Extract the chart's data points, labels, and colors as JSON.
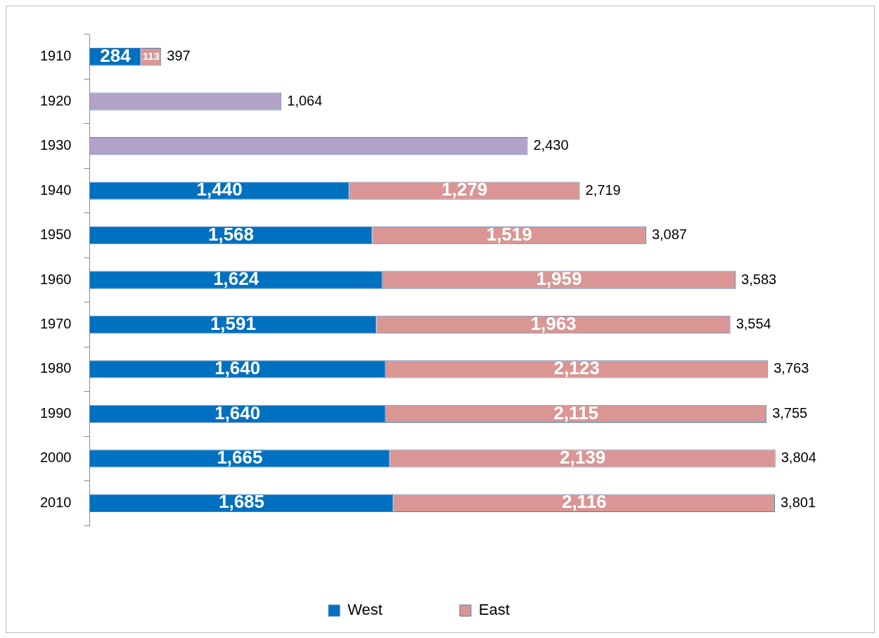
{
  "chart_data": {
    "type": "bar",
    "orientation": "horizontal",
    "stacked": true,
    "legend": "bottom",
    "categories": [
      "1910",
      "1920",
      "1930",
      "1940",
      "1950",
      "1960",
      "1970",
      "1980",
      "1990",
      "2000",
      "2010"
    ],
    "series": [
      {
        "name": "West",
        "color": "#0070c0",
        "values": [
          284,
          null,
          null,
          1440,
          1568,
          1624,
          1591,
          1640,
          1640,
          1665,
          1685
        ],
        "value_labels": [
          "284",
          null,
          null,
          "1,440",
          "1,568",
          "1,624",
          "1,591",
          "1,640",
          "1,640",
          "1,665",
          "1,685"
        ]
      },
      {
        "name": "East",
        "color": "#d99694",
        "values": [
          113,
          null,
          null,
          1279,
          1519,
          1959,
          1963,
          2123,
          2115,
          2139,
          2116
        ],
        "value_labels": [
          "113",
          null,
          null,
          "1,279",
          "1,519",
          "1,959",
          "1,963",
          "2,123",
          "2,115",
          "2,139",
          "2,116"
        ]
      },
      {
        "color": "#b3a2c7",
        "values": [
          null,
          1064,
          2430,
          null,
          null,
          null,
          null,
          null,
          null,
          null,
          null
        ]
      }
    ],
    "totals": [
      "397",
      "1,064",
      "2,430",
      "2,719",
      "3,087",
      "3,583",
      "3,554",
      "3,763",
      "3,755",
      "3,804",
      "3,801"
    ]
  }
}
